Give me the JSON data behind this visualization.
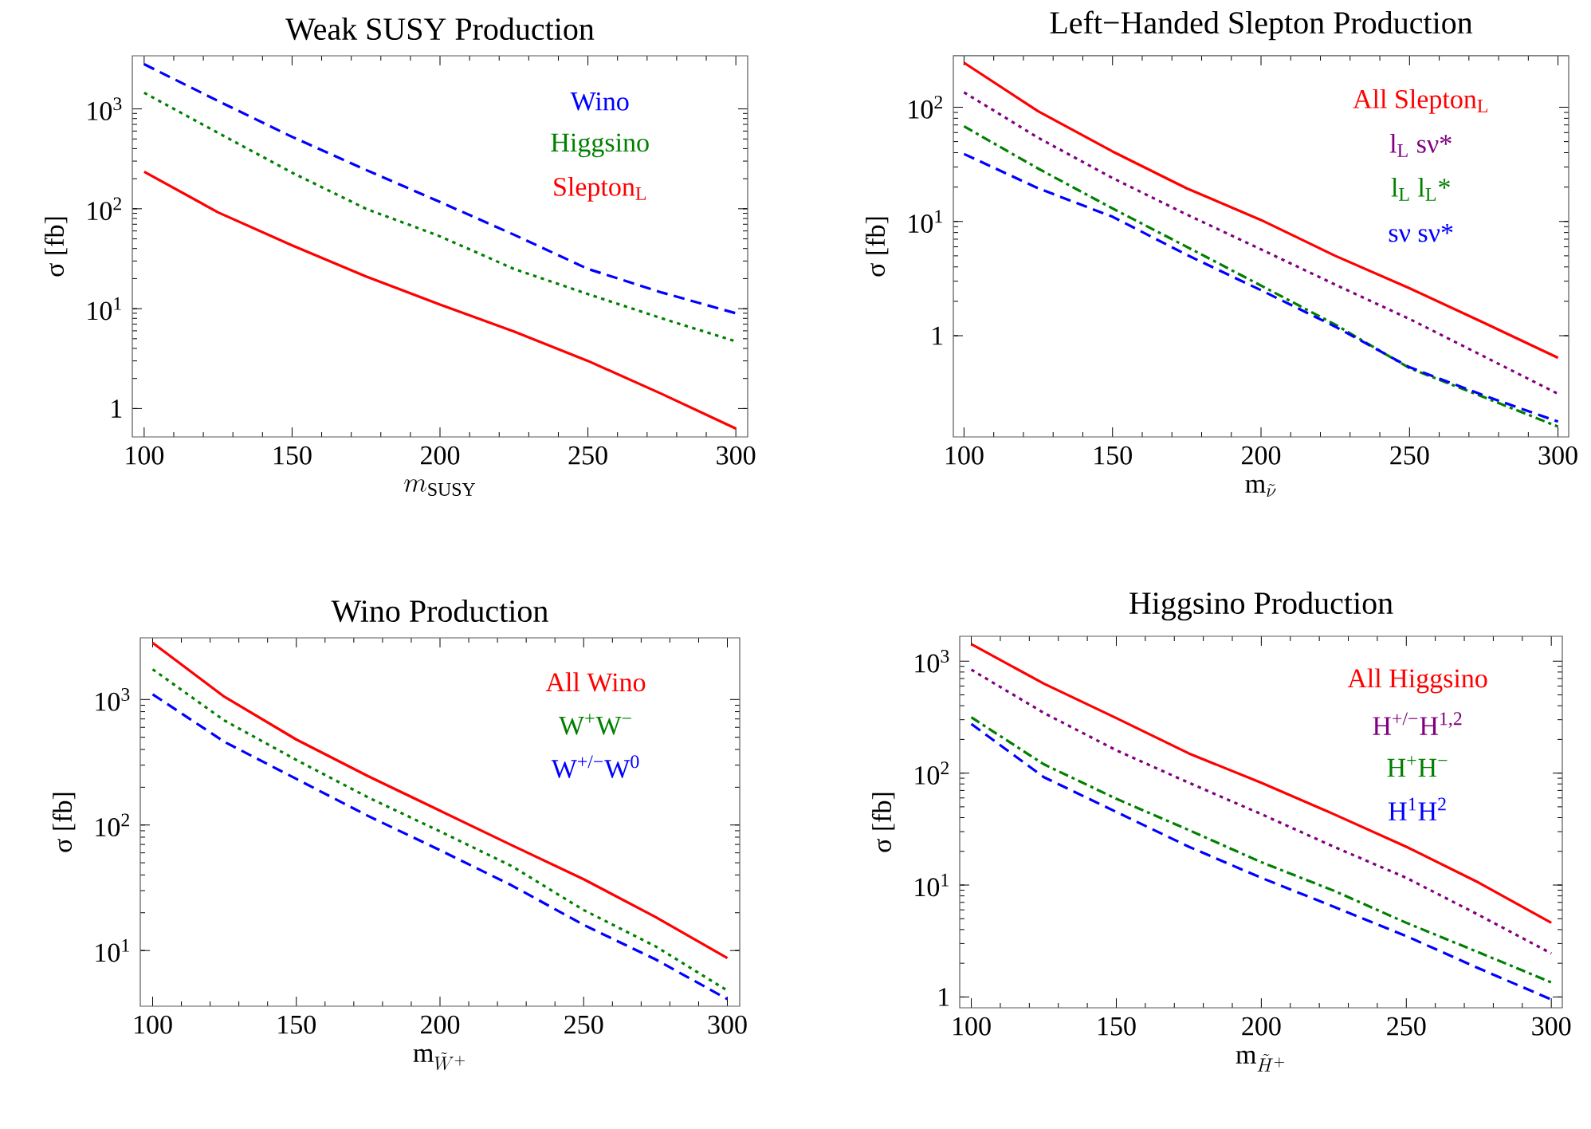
{
  "chart_data": [
    {
      "type": "line",
      "title": "Weak SUSY Production",
      "xlabel": "m_{\\mathrm{SUSY}}",
      "ylabel": "σ  [fb]",
      "log": "y",
      "legend": "top right",
      "xlim": [
        96,
        304
      ],
      "ylim": [
        0.52,
        3400
      ],
      "xticks": [
        100,
        150,
        200,
        250,
        300
      ],
      "yticks": [
        {
          "value": 1,
          "label": "1"
        },
        {
          "value": 10,
          "label": "10$^{1}$"
        },
        {
          "value": 100,
          "label": "10$^{2}$"
        },
        {
          "value": 1000,
          "label": "10$^{3}$"
        }
      ],
      "x": [
        100,
        125,
        150,
        175,
        200,
        225,
        250,
        275,
        300
      ],
      "series": [
        {
          "name": "Wino",
          "color": "#0000ff",
          "line_style": "dashed",
          "values": [
            2800,
            1200,
            525,
            245,
            117,
            55,
            25,
            14.5,
            9
          ]
        },
        {
          "name": "Higgsino",
          "color": "#008000",
          "line_style": "dotted",
          "values": [
            1450,
            575,
            230,
            100,
            53,
            25,
            14,
            8,
            4.7
          ]
        },
        {
          "name": "Slepton$_{L}$",
          "color": "#ff0000",
          "line_style": "solid",
          "values": [
            235,
            92,
            43,
            21,
            11,
            5.9,
            3.0,
            1.4,
            0.63
          ]
        }
      ]
    },
    {
      "type": "line",
      "title": "Left−Handed Slepton Production",
      "xlabel": "\\mathrm{m}_{\\tilde{\\nu}}",
      "ylabel": "σ  [fb]",
      "log": "y",
      "legend": "top right",
      "xlim": [
        96.4,
        303.6
      ],
      "ylim": [
        0.13,
        282
      ],
      "xticks": [
        100,
        150,
        200,
        250,
        300
      ],
      "yticks": [
        {
          "value": 1,
          "label": "1"
        },
        {
          "value": 10,
          "label": "10$^{1}$"
        },
        {
          "value": 100,
          "label": "10$^{2}$"
        }
      ],
      "x": [
        100,
        125,
        150,
        175,
        200,
        225,
        250,
        275,
        300
      ],
      "series": [
        {
          "name": "All Slepton$_{L}$",
          "color": "#ff0000",
          "line_style": "solid",
          "values": [
            245,
            92,
            41,
            19.5,
            10.3,
            5.0,
            2.6,
            1.3,
            0.64
          ]
        },
        {
          "name": "l$_{L}$ sν*",
          "color": "#800080",
          "line_style": "dotted",
          "values": [
            135,
            54,
            24,
            11.5,
            5.7,
            2.8,
            1.4,
            0.66,
            0.31
          ]
        },
        {
          "name": "l$_{L}$ l$_{L}$*",
          "color": "#008000",
          "line_style": "dashdot",
          "values": [
            68,
            29,
            13,
            6.0,
            2.75,
            1.25,
            0.52,
            0.29,
            0.16
          ]
        },
        {
          "name": "sν sν*",
          "color": "#0000ff",
          "line_style": "dashed",
          "values": [
            39,
            19.5,
            11,
            5.1,
            2.5,
            1.2,
            0.53,
            0.3,
            0.177
          ]
        }
      ]
    },
    {
      "type": "line",
      "title": "Wino Production",
      "xlabel": "\\mathrm{m}_{\\tilde{W}^{+}}",
      "ylabel": "σ  [fb]",
      "log": "y",
      "legend": "top right",
      "xlim": [
        95.7,
        304.3
      ],
      "ylim": [
        3.6,
        3100
      ],
      "xticks": [
        100,
        150,
        200,
        250,
        300
      ],
      "yticks": [
        {
          "value": 10,
          "label": "10$^{1}$"
        },
        {
          "value": 100,
          "label": "10$^{2}$"
        },
        {
          "value": 1000,
          "label": "10$^{3}$"
        }
      ],
      "x": [
        100,
        125,
        150,
        175,
        200,
        225,
        250,
        275,
        300
      ],
      "series": [
        {
          "name": "All Wino",
          "color": "#ff0000",
          "line_style": "solid",
          "values": [
            2830,
            1050,
            480,
            245,
            130,
            69,
            37,
            18.5,
            8.7
          ]
        },
        {
          "name": "W$^{+}$W$^{−}$",
          "color": "#008000",
          "line_style": "dotted",
          "values": [
            1740,
            680,
            330,
            166,
            89,
            47,
            21,
            10.8,
            4.8
          ]
        },
        {
          "name": "W$^{+/−}$W$^{0}$",
          "color": "#0000ff",
          "line_style": "dashed",
          "values": [
            1100,
            460,
            233,
            118,
            63,
            33,
            16,
            8.5,
            4.1
          ]
        }
      ]
    },
    {
      "type": "line",
      "title": "Higgsino Production",
      "xlabel": "\\mathrm{m}_{\\tilde{H}^{+}}",
      "ylabel": "σ  [fb]",
      "log": "y",
      "legend": "top right",
      "xlim": [
        96,
        303.8
      ],
      "ylim": [
        0.8,
        1670
      ],
      "xticks": [
        100,
        150,
        200,
        250,
        300
      ],
      "yticks": [
        {
          "value": 1,
          "label": "1"
        },
        {
          "value": 10,
          "label": "10$^{1}$"
        },
        {
          "value": 100,
          "label": "10$^{2}$"
        },
        {
          "value": 1000,
          "label": "10$^{3}$"
        }
      ],
      "x": [
        100,
        125,
        150,
        175,
        200,
        225,
        250,
        275,
        300
      ],
      "series": [
        {
          "name": "All Higgsino",
          "color": "#ff0000",
          "line_style": "solid",
          "values": [
            1420,
            630,
            310,
            150,
            82,
            43,
            22,
            10.5,
            4.6
          ]
        },
        {
          "name": "H$^{+/−}$H$^{1,2}$",
          "color": "#800080",
          "line_style": "dotted",
          "values": [
            840,
            345,
            160,
            82,
            43,
            22,
            11.6,
            5.4,
            2.45
          ]
        },
        {
          "name": "H$^{+}$H$^{−}$",
          "color": "#008000",
          "line_style": "dashdot",
          "values": [
            315,
            120,
            59,
            31,
            16,
            8.9,
            4.6,
            2.5,
            1.35
          ]
        },
        {
          "name": "H$^{1}$H$^{2}$",
          "color": "#0000ff",
          "line_style": "dashed",
          "values": [
            275,
            92,
            45,
            22,
            11.6,
            6.4,
            3.5,
            1.8,
            0.95
          ]
        }
      ]
    }
  ]
}
